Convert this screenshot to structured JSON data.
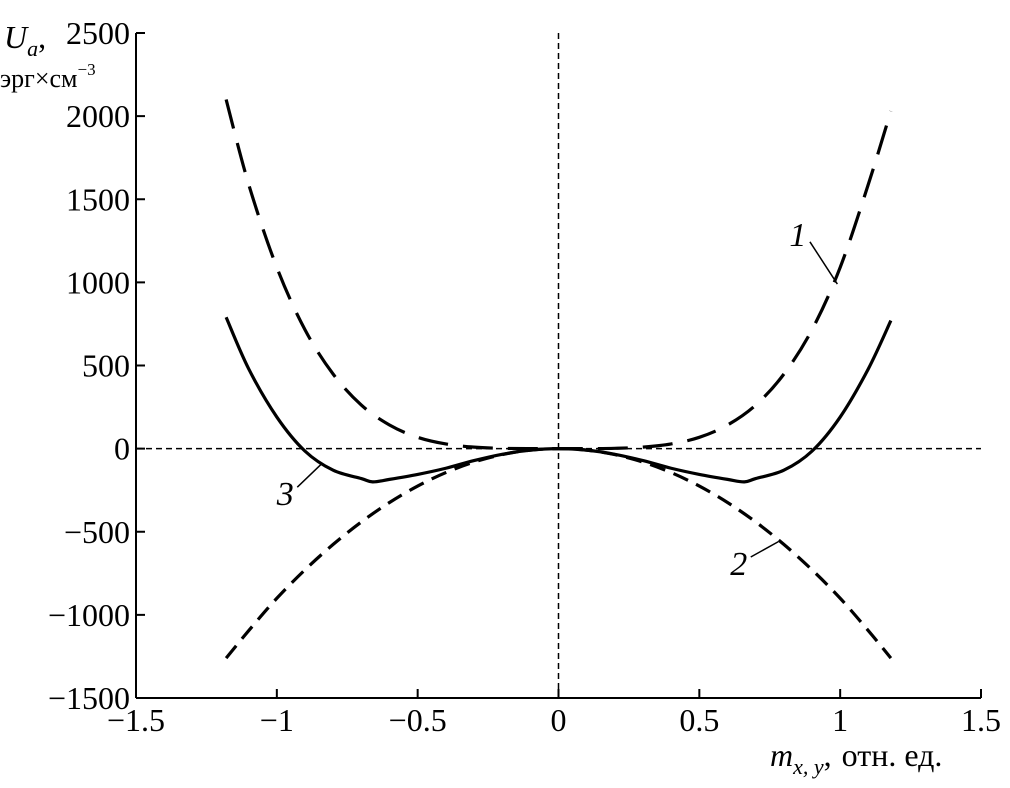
{
  "chart_data": {
    "type": "line",
    "xlim": [
      -1.5,
      1.5
    ],
    "ylim": [
      -1500,
      2500
    ],
    "x_ticks": [
      {
        "value": -1.5,
        "label": "−1.5"
      },
      {
        "value": -1,
        "label": "−1"
      },
      {
        "value": -0.5,
        "label": "−0.5"
      },
      {
        "value": 0,
        "label": "0"
      },
      {
        "value": 0.5,
        "label": "0.5"
      },
      {
        "value": 1,
        "label": "1"
      },
      {
        "value": 1.5,
        "label": "1.5"
      }
    ],
    "y_ticks": [
      {
        "value": -1500,
        "label": "−1500"
      },
      {
        "value": -1000,
        "label": "−1000"
      },
      {
        "value": -500,
        "label": "−500"
      },
      {
        "value": 0,
        "label": "0"
      },
      {
        "value": 500,
        "label": "500"
      },
      {
        "value": 1000,
        "label": "1000"
      },
      {
        "value": 1500,
        "label": "1500"
      },
      {
        "value": 2000,
        "label": "2000"
      },
      {
        "value": 2500,
        "label": "2500"
      }
    ],
    "ylabel": {
      "main": "U",
      "sub": "a",
      "comma": ",",
      "units": "эрг×см",
      "units_sup": "−3"
    },
    "xlabel": {
      "main": "m",
      "sub": "x, y",
      "comma": ",",
      "units": "отн. ед."
    },
    "grid": false,
    "reference_lines": {
      "x": 0,
      "y": 0,
      "style": "dashed"
    },
    "series": [
      {
        "id": "curve-1",
        "style": "long-dash",
        "color": "#000000",
        "x": [
          -1.18,
          -1.1,
          -1.0,
          -0.9,
          -0.8,
          -0.7,
          -0.6,
          -0.5,
          -0.4,
          -0.3,
          -0.2,
          -0.1,
          0.0,
          0.1,
          0.2,
          0.3,
          0.4,
          0.5,
          0.6,
          0.7,
          0.8,
          0.9,
          1.0,
          1.1,
          1.18
        ],
        "y": [
          2100,
          1590,
          1090,
          715,
          448,
          262,
          142,
          68,
          28,
          9,
          2,
          0,
          0,
          0,
          2,
          9,
          28,
          68,
          142,
          262,
          448,
          715,
          1090,
          1590,
          2030
        ]
      },
      {
        "id": "curve-2",
        "style": "short-dash",
        "color": "#000000",
        "x": [
          -1.18,
          -1.1,
          -1.0,
          -0.9,
          -0.8,
          -0.7,
          -0.6,
          -0.5,
          -0.4,
          -0.3,
          -0.2,
          -0.1,
          0.0,
          0.1,
          0.2,
          0.3,
          0.4,
          0.5,
          0.6,
          0.7,
          0.8,
          0.9,
          1.0,
          1.1,
          1.18
        ],
        "y": [
          -1260,
          -1095,
          -900,
          -729,
          -576,
          -441,
          -324,
          -225,
          -144,
          -81,
          -36,
          -9,
          0,
          -9,
          -36,
          -81,
          -144,
          -225,
          -324,
          -441,
          -576,
          -729,
          -900,
          -1095,
          -1260
        ]
      },
      {
        "id": "curve-3",
        "style": "solid",
        "color": "#000000",
        "x": [
          -1.18,
          -1.1,
          -1.0,
          -0.9,
          -0.8,
          -0.7,
          -0.66,
          -0.6,
          -0.5,
          -0.4,
          -0.3,
          -0.2,
          -0.1,
          0.0,
          0.1,
          0.2,
          0.3,
          0.4,
          0.5,
          0.6,
          0.66,
          0.7,
          0.8,
          0.9,
          1.0,
          1.1,
          1.18
        ],
        "y": [
          790,
          480,
          190,
          -15,
          -130,
          -180,
          -200,
          -185,
          -155,
          -118,
          -72,
          -34,
          -9,
          0,
          -9,
          -34,
          -72,
          -118,
          -155,
          -185,
          -200,
          -180,
          -130,
          -15,
          190,
          480,
          770
        ]
      }
    ],
    "annotations": [
      {
        "text": "1",
        "series": "curve-1",
        "x": 0.85,
        "y": 1220,
        "target_x": 0.99,
        "target_y": 990
      },
      {
        "text": "2",
        "series": "curve-2",
        "x": 0.64,
        "y": -760,
        "target_x": 0.78,
        "target_y": -560
      },
      {
        "text": "3",
        "series": "curve-3",
        "x": -0.97,
        "y": -340,
        "target_x": -0.84,
        "target_y": -90
      }
    ]
  }
}
